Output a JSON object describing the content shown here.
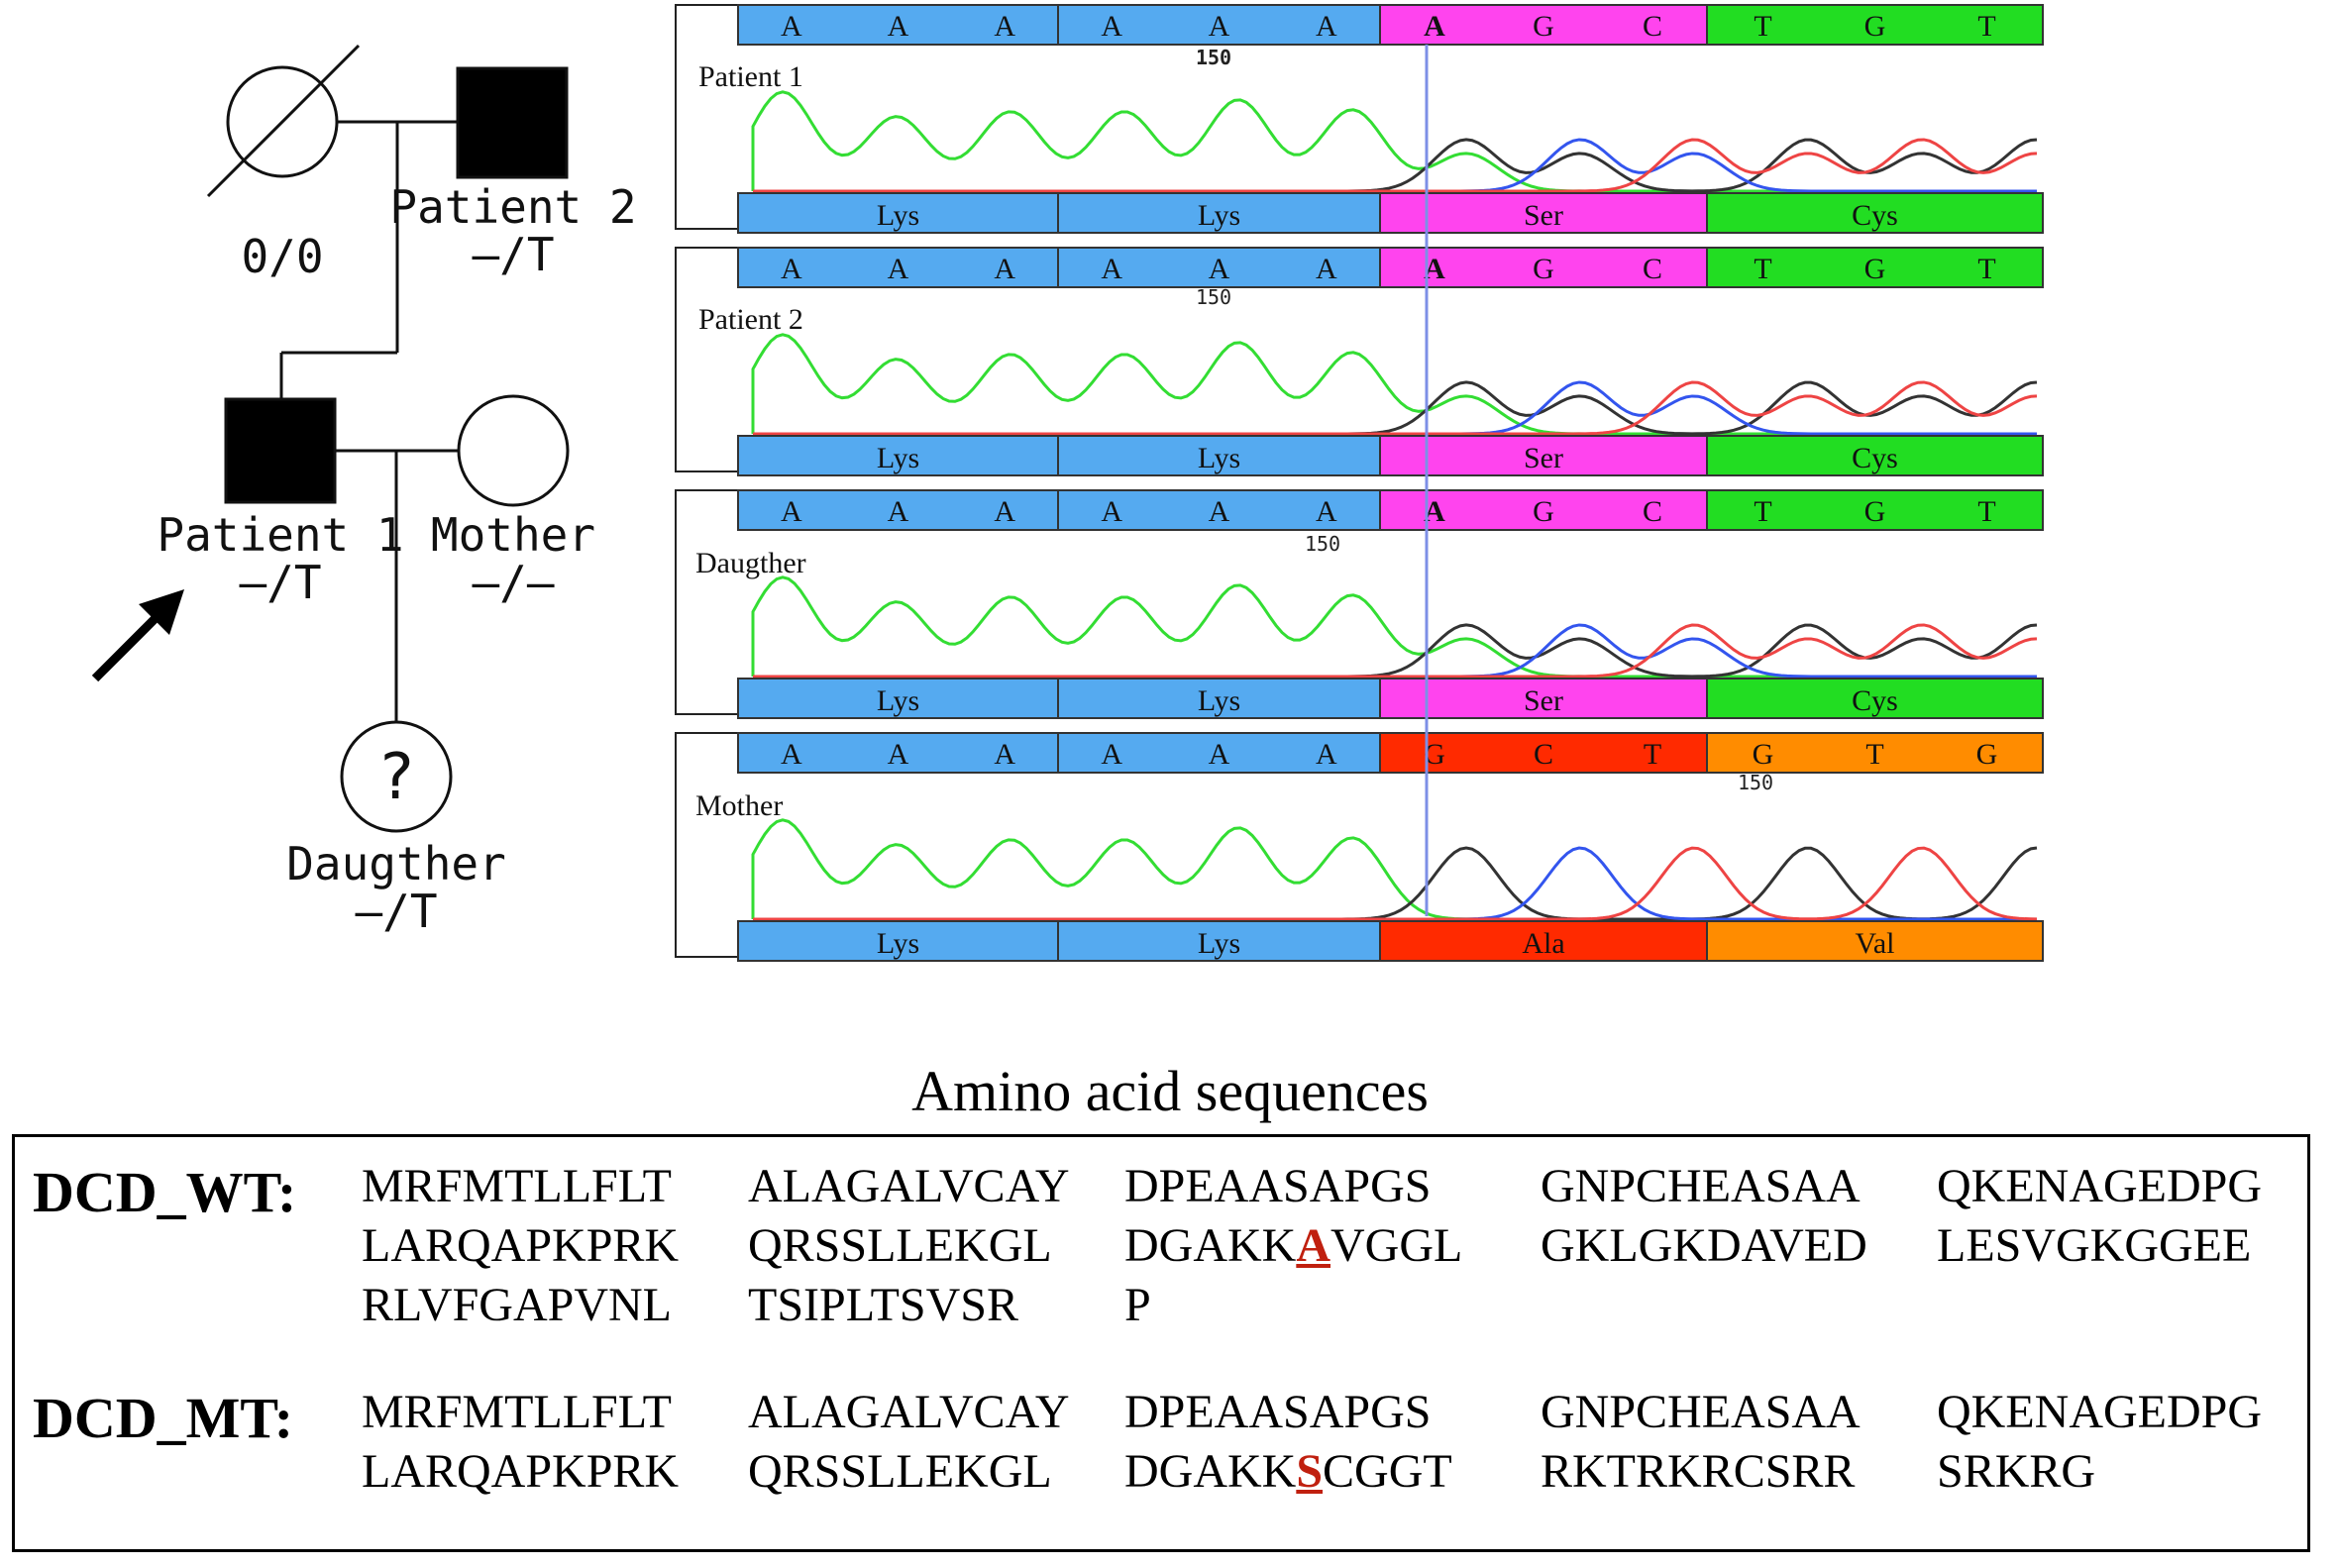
{
  "pedigree": {
    "grandmother": {
      "genotype": "0/0"
    },
    "grandfather": {
      "label": "Patient 2",
      "genotype": "–/T"
    },
    "proband": {
      "label": "Patient 1",
      "genotype": "–/T"
    },
    "mother": {
      "label": "Mother",
      "genotype": "–/–"
    },
    "daughter": {
      "label": "Daugther",
      "genotype": "–/T",
      "symbol": "?"
    }
  },
  "chromatograms": [
    {
      "name": "Patient 1",
      "position_label": "150",
      "bases": [
        "A",
        "A",
        "A",
        "A",
        "A",
        "A",
        "A",
        "G",
        "C",
        "T",
        "G",
        "T"
      ],
      "codon_colors": [
        "#55aaf0",
        "#55aaf0",
        "#ff44ee",
        "#22dd22"
      ],
      "amino_acids": [
        "Lys",
        "Lys",
        "Ser",
        "Cys"
      ]
    },
    {
      "name": "Patient 2",
      "position_label": "150",
      "bases": [
        "A",
        "A",
        "A",
        "A",
        "A",
        "A",
        "A",
        "G",
        "C",
        "T",
        "G",
        "T"
      ],
      "codon_colors": [
        "#55aaf0",
        "#55aaf0",
        "#ff44ee",
        "#22dd22"
      ],
      "amino_acids": [
        "Lys",
        "Lys",
        "Ser",
        "Cys"
      ]
    },
    {
      "name": "Daugther",
      "position_label": "150",
      "bases": [
        "A",
        "A",
        "A",
        "A",
        "A",
        "A",
        "A",
        "G",
        "C",
        "T",
        "G",
        "T"
      ],
      "codon_colors": [
        "#55aaf0",
        "#55aaf0",
        "#ff44ee",
        "#22dd22"
      ],
      "amino_acids": [
        "Lys",
        "Lys",
        "Ser",
        "Cys"
      ]
    },
    {
      "name": "Mother",
      "position_label": "150",
      "bases": [
        "A",
        "A",
        "A",
        "A",
        "A",
        "A",
        "G",
        "C",
        "T",
        "G",
        "T",
        "G"
      ],
      "codon_colors": [
        "#55aaf0",
        "#55aaf0",
        "#ff2a00",
        "#ff8c00"
      ],
      "amino_acids": [
        "Lys",
        "Lys",
        "Ala",
        "Val"
      ]
    }
  ],
  "sequences": {
    "title": "Amino acid sequences",
    "wt": {
      "label": "DCD_WT:",
      "lines": [
        [
          "MRFMTLLFLT",
          "ALAGALVCAY",
          "DPEAASAPGS",
          "GNPCHEASAA",
          "QKENAGEDPG"
        ],
        [
          "LARQAPKPRK",
          "QRSSLLEKGL",
          "DGAKK|A|VGGL",
          "GKLGKDAVED",
          "LESVGKGGEE"
        ],
        [
          "RLVFGAPVNL",
          "TSIPLTSVSR",
          "P"
        ]
      ]
    },
    "mt": {
      "label": "DCD_MT:",
      "lines": [
        [
          "MRFMTLLFLT",
          "ALAGALVCAY",
          "DPEAASAPGS",
          "GNPCHEASAA",
          "QKENAGEDPG"
        ],
        [
          "LARQAPKPRK",
          "QRSSLLEKGL",
          "DGAKK|S|CGGT",
          "RKTRKRCSRR",
          "SRKRG"
        ]
      ]
    }
  }
}
